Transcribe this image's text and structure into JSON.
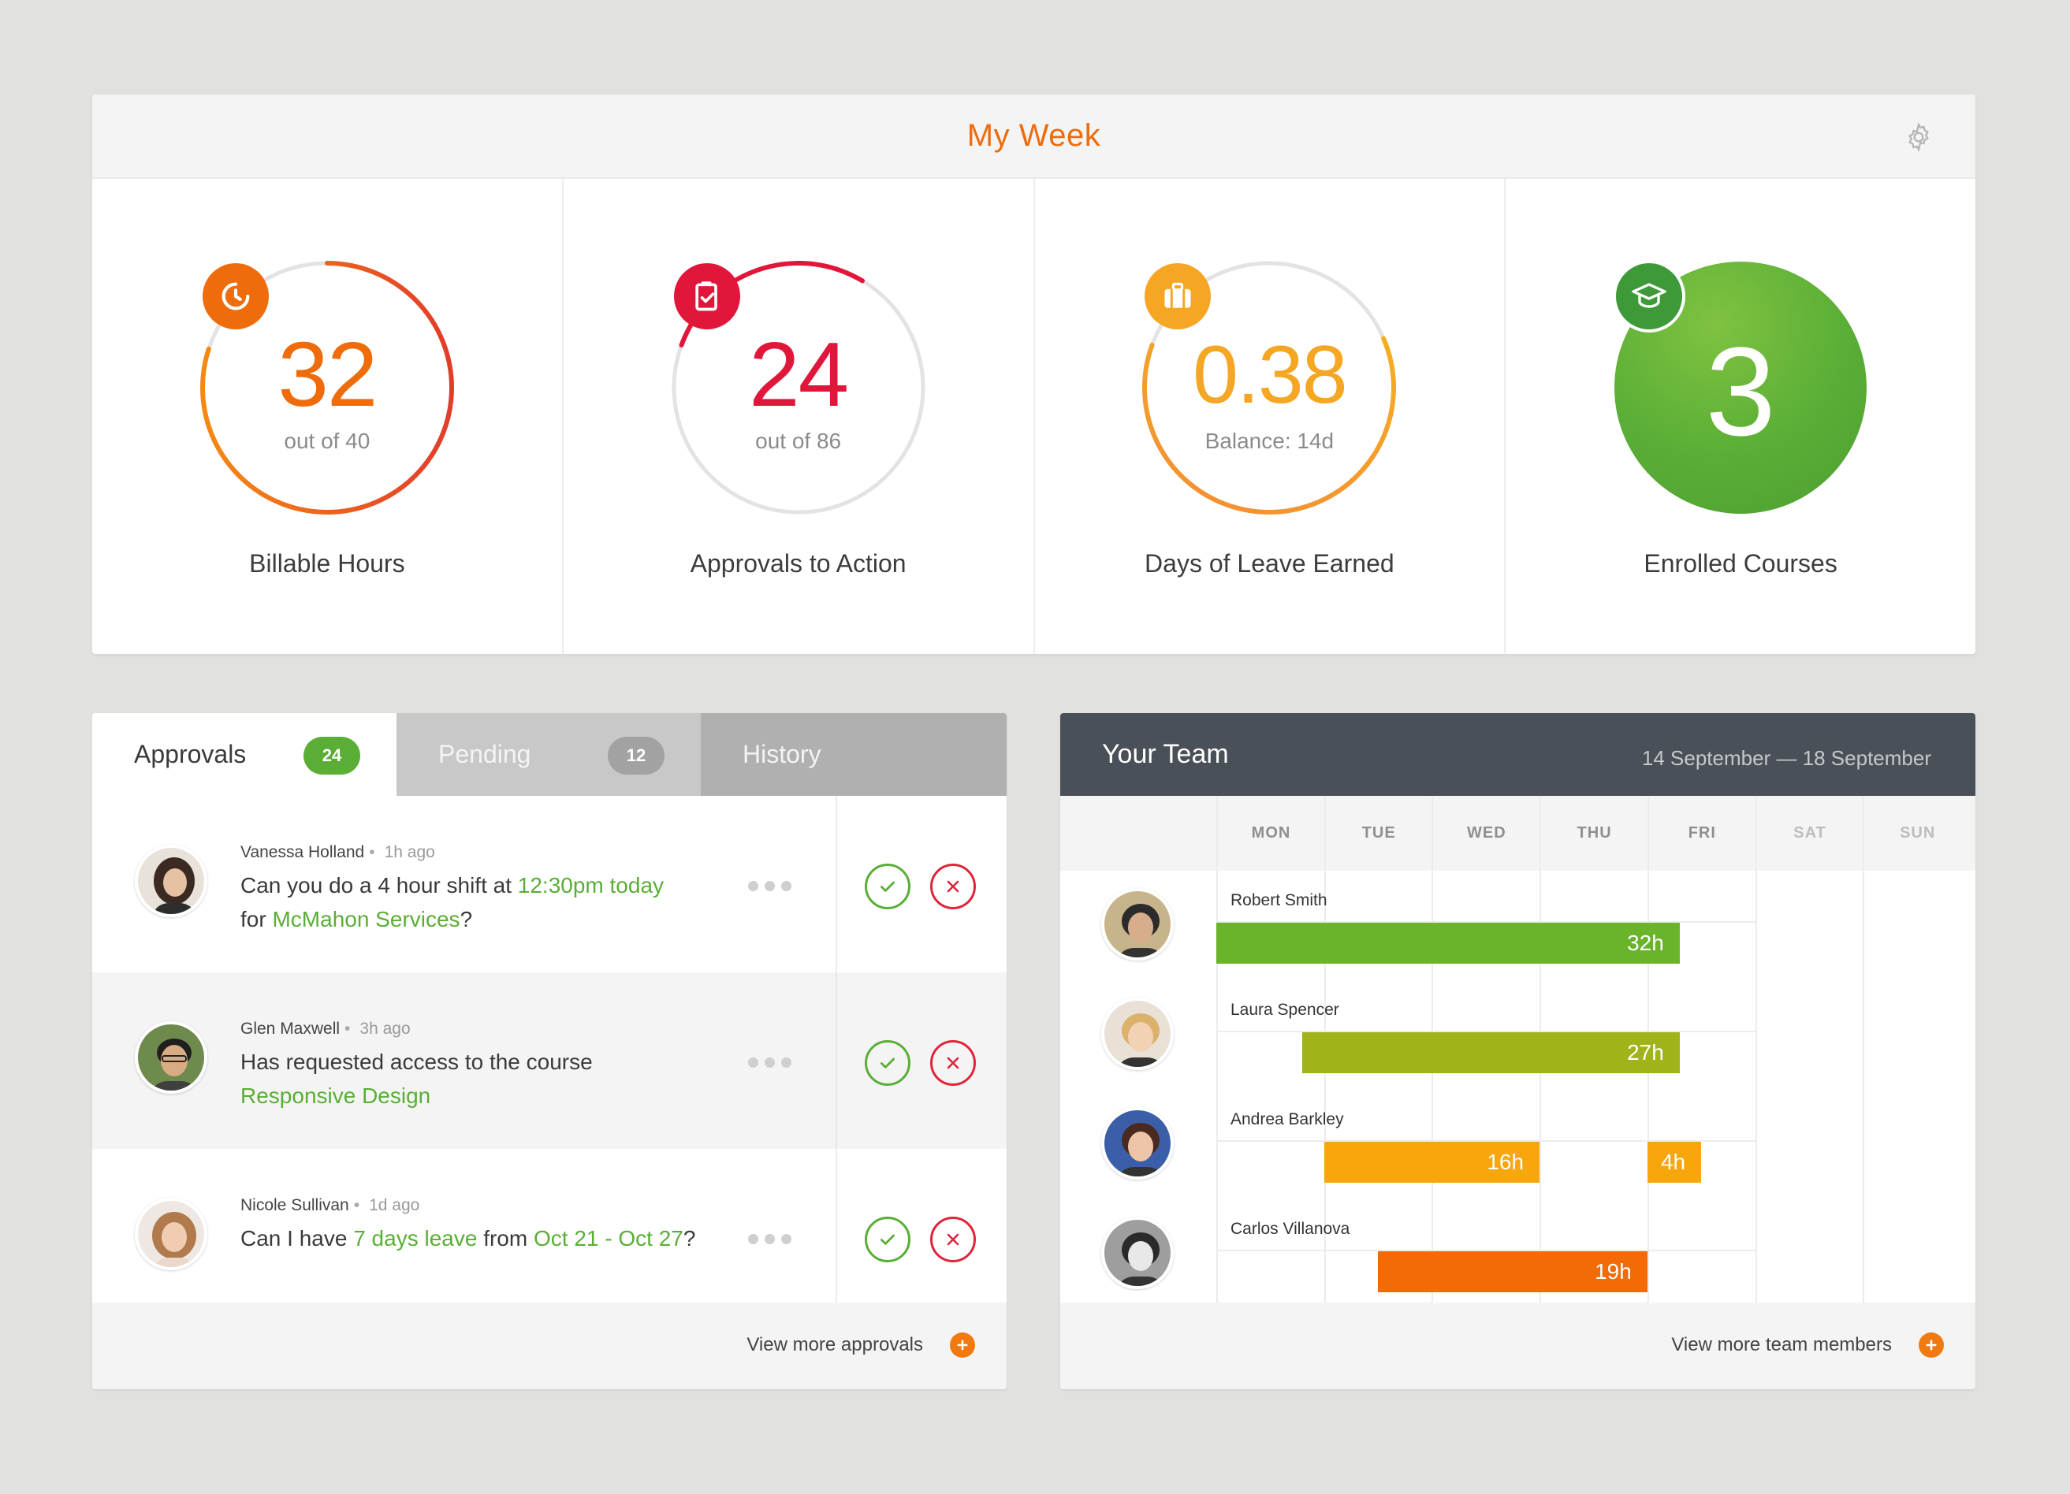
{
  "week": {
    "title": "My Week",
    "stats": [
      {
        "value": "32",
        "sub": "out of 40",
        "label": "Billable Hours",
        "icon": "clock-icon",
        "color": "#ef6c0c",
        "progress": 0.8
      },
      {
        "value": "24",
        "sub": "out of 86",
        "label": "Approvals to Action",
        "icon": "clipboard-check-icon",
        "color": "#e0173a",
        "progress": 0.28
      },
      {
        "value": "0.38",
        "sub": "Balance: 14d",
        "label": "Days of Leave Earned",
        "icon": "suitcase-icon",
        "color": "#f5a623",
        "progress": 0.62
      },
      {
        "value": "3",
        "sub": "",
        "label": "Enrolled Courses",
        "icon": "graduation-cap-icon",
        "color": "#5aae36",
        "progress": 1.0
      }
    ]
  },
  "approvals": {
    "tabs": [
      {
        "label": "Approvals",
        "count": "24"
      },
      {
        "label": "Pending",
        "count": "12"
      },
      {
        "label": "History",
        "count": ""
      }
    ],
    "items": [
      {
        "name": "Vanessa Holland",
        "when": "1h ago",
        "text1": "Can you do a 4 hour shift at ",
        "hl1": "12:30pm today",
        "text2": "for ",
        "hl2": "McMahon Services",
        "text3": "?"
      },
      {
        "name": "Glen Maxwell",
        "when": "3h ago",
        "text1": "Has requested access to the course",
        "hl2": "Responsive Design"
      },
      {
        "name": "Nicole Sullivan",
        "when": "1d ago",
        "text1": "Can I have ",
        "hl1": "7 days leave",
        "text2": " from ",
        "hl2": "Oct 21 - Oct 27",
        "text3": "?"
      }
    ],
    "footer": "View more approvals"
  },
  "team": {
    "title": "Your Team",
    "dates": "14 September — 18 September",
    "days": [
      "MON",
      "TUE",
      "WED",
      "THU",
      "FRI",
      "SAT",
      "SUN"
    ],
    "members": [
      {
        "name": "Robert Smith",
        "bars": [
          {
            "label": "32h",
            "color": "#6ab42a",
            "start_day": 0,
            "end_day": 4.3
          }
        ]
      },
      {
        "name": "Laura Spencer",
        "bars": [
          {
            "label": "27h",
            "color": "#a0b41a",
            "start_day": 0.8,
            "end_day": 4.3
          }
        ]
      },
      {
        "name": "Andrea Barkley",
        "bars": [
          {
            "label": "16h",
            "color": "#f7a70c",
            "start_day": 1.0,
            "end_day": 3.0
          },
          {
            "label": "4h",
            "color": "#f7a70c",
            "start_day": 4.0,
            "end_day": 4.5
          }
        ]
      },
      {
        "name": "Carlos Villanova",
        "bars": [
          {
            "label": "19h",
            "color": "#f26b07",
            "start_day": 1.5,
            "end_day": 4.0
          }
        ]
      }
    ],
    "footer": "View more team members"
  }
}
